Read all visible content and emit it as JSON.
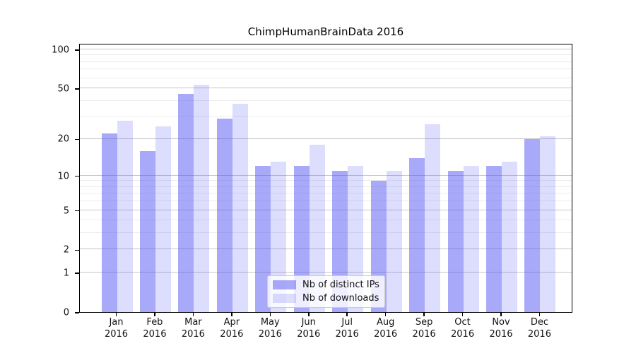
{
  "title": "ChimpHumanBrainData 2016",
  "chart_data": {
    "type": "bar",
    "title": "ChimpHumanBrainData 2016",
    "categories": [
      "Jan",
      "Feb",
      "Mar",
      "Apr",
      "May",
      "Jun",
      "Jul",
      "Aug",
      "Sep",
      "Oct",
      "Nov",
      "Dec"
    ],
    "category_year": "2016",
    "series": [
      {
        "name": "Nb of distinct IPs",
        "color": "rgba(83,83,245,0.5)",
        "values": [
          22,
          16,
          45,
          29,
          12,
          12,
          11,
          9,
          14,
          11,
          12,
          20
        ]
      },
      {
        "name": "Nb of downloads",
        "color": "rgba(83,83,245,0.2)",
        "values": [
          28,
          25,
          53,
          38,
          13,
          18,
          12,
          11,
          26,
          12,
          13,
          21
        ]
      }
    ],
    "xlabel": "",
    "ylabel": "",
    "yscale": "log1p",
    "ylim": [
      0,
      112
    ],
    "yticks": [
      0,
      1,
      2,
      5,
      10,
      20,
      50,
      100
    ],
    "minor_yticks": [
      3,
      4,
      6,
      7,
      8,
      9,
      30,
      40,
      60,
      70,
      80,
      90
    ],
    "grid": true,
    "legend_position": "lower center",
    "colors": {
      "major_grid": "#c6c6c6",
      "minor_grid": "#ececec",
      "axis": "#000000",
      "text": "#111111"
    }
  }
}
